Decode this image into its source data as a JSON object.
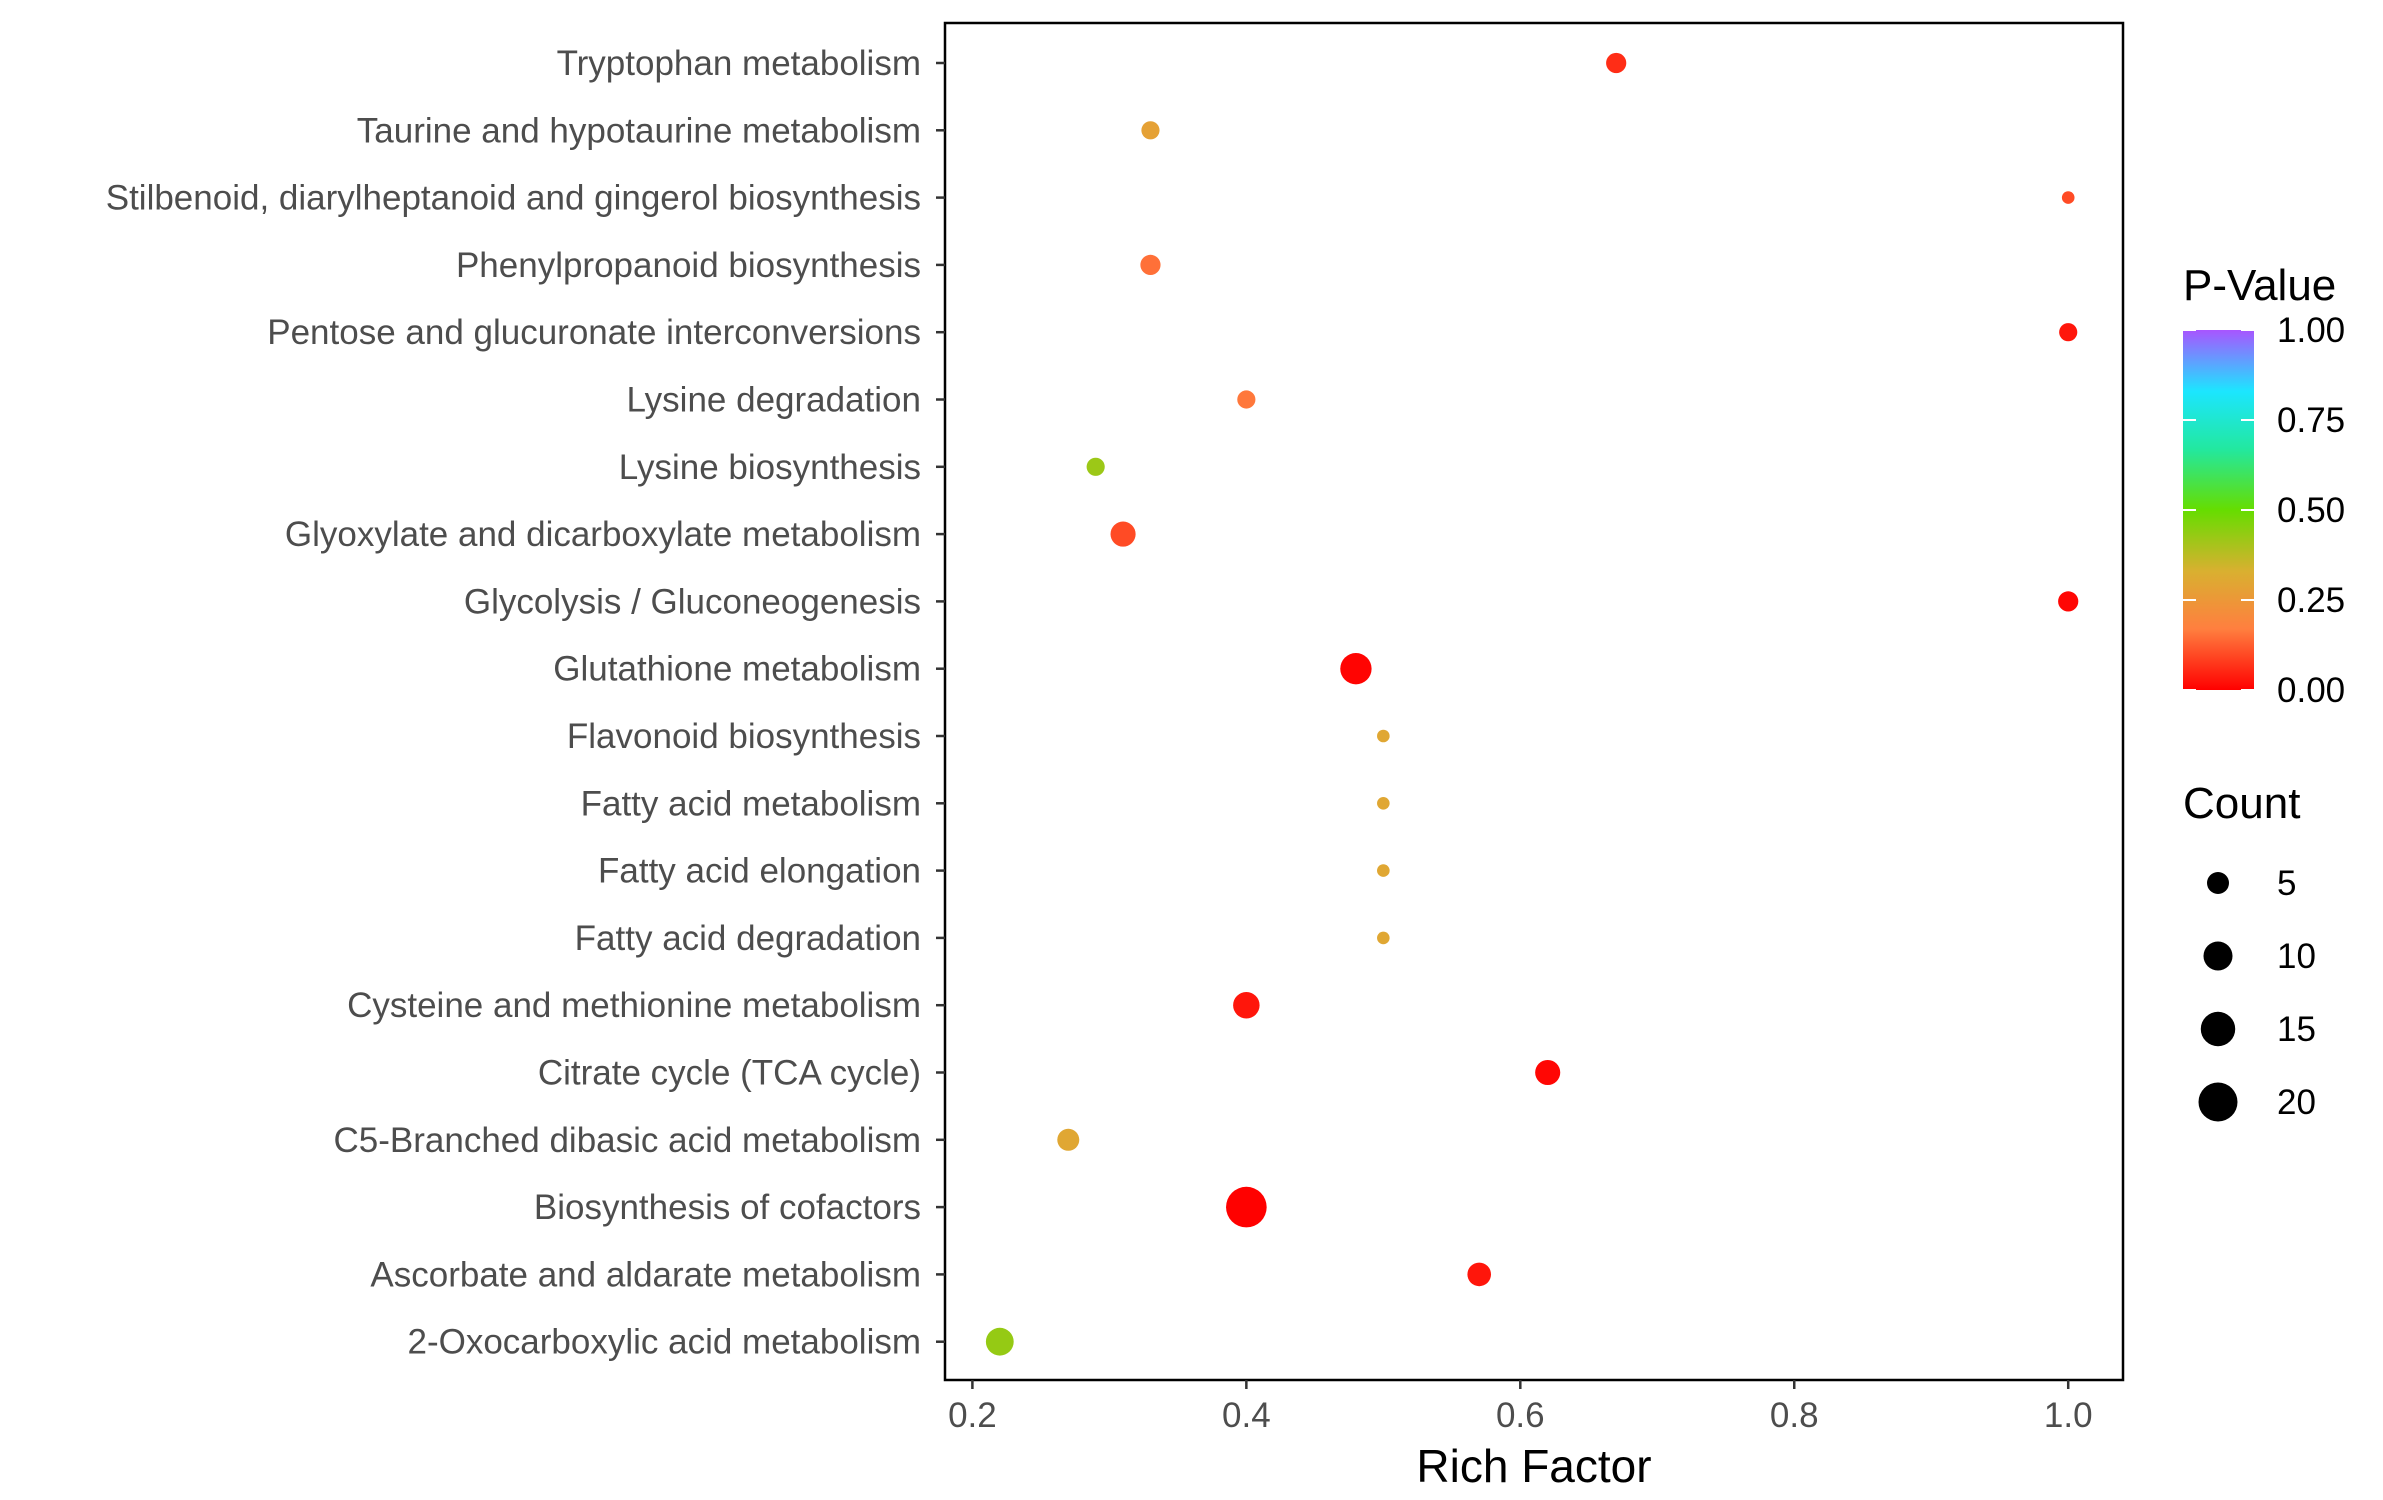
{
  "chart_data": {
    "type": "scatter",
    "xlabel": "Rich Factor",
    "ylabel": "",
    "xlim": [
      0.18,
      1.04
    ],
    "x_ticks": [
      0.2,
      0.4,
      0.6,
      0.8,
      1.0
    ],
    "x_tick_labels": [
      "0.2",
      "0.4",
      "0.6",
      "0.8",
      "1.0"
    ],
    "grid": false,
    "categories": [
      "Tryptophan metabolism",
      "Taurine and hypotaurine metabolism",
      "Stilbenoid, diarylheptanoid and gingerol biosynthesis",
      "Phenylpropanoid biosynthesis",
      "Pentose and glucuronate interconversions",
      "Lysine degradation",
      "Lysine biosynthesis",
      "Glyoxylate and dicarboxylate metabolism",
      "Glycolysis / Gluconeogenesis",
      "Glutathione metabolism",
      "Flavonoid biosynthesis",
      "Fatty acid metabolism",
      "Fatty acid elongation",
      "Fatty acid degradation",
      "Cysteine and methionine metabolism",
      "Citrate cycle (TCA cycle)",
      "C5-Branched dibasic acid metabolism",
      "Biosynthesis of cofactors",
      "Ascorbate and aldarate metabolism",
      "2-Oxocarboxylic acid metabolism"
    ],
    "points": [
      {
        "category": "Tryptophan metabolism",
        "rich_factor": 0.67,
        "p_value": 0.06,
        "count": 4
      },
      {
        "category": "Taurine and hypotaurine metabolism",
        "rich_factor": 0.33,
        "p_value": 0.28,
        "count": 3
      },
      {
        "category": "Stilbenoid, diarylheptanoid and gingerol biosynthesis",
        "rich_factor": 1.0,
        "p_value": 0.1,
        "count": 1
      },
      {
        "category": "Phenylpropanoid biosynthesis",
        "rich_factor": 0.33,
        "p_value": 0.15,
        "count": 4
      },
      {
        "category": "Pentose and glucuronate interconversions",
        "rich_factor": 1.0,
        "p_value": 0.03,
        "count": 3
      },
      {
        "category": "Lysine degradation",
        "rich_factor": 0.4,
        "p_value": 0.16,
        "count": 3
      },
      {
        "category": "Lysine biosynthesis",
        "rich_factor": 0.29,
        "p_value": 0.42,
        "count": 3
      },
      {
        "category": "Glyoxylate and dicarboxylate metabolism",
        "rich_factor": 0.31,
        "p_value": 0.1,
        "count": 7
      },
      {
        "category": "Glycolysis / Gluconeogenesis",
        "rich_factor": 1.0,
        "p_value": 0.01,
        "count": 4
      },
      {
        "category": "Glutathione metabolism",
        "rich_factor": 0.48,
        "p_value": 0.005,
        "count": 12
      },
      {
        "category": "Flavonoid biosynthesis",
        "rich_factor": 0.5,
        "p_value": 0.3,
        "count": 1
      },
      {
        "category": "Fatty acid metabolism",
        "rich_factor": 0.5,
        "p_value": 0.3,
        "count": 1
      },
      {
        "category": "Fatty acid elongation",
        "rich_factor": 0.5,
        "p_value": 0.3,
        "count": 1
      },
      {
        "category": "Fatty acid degradation",
        "rich_factor": 0.5,
        "p_value": 0.3,
        "count": 1
      },
      {
        "category": "Cysteine and methionine metabolism",
        "rich_factor": 0.4,
        "p_value": 0.03,
        "count": 8
      },
      {
        "category": "Citrate cycle (TCA cycle)",
        "rich_factor": 0.62,
        "p_value": 0.01,
        "count": 7
      },
      {
        "category": "C5-Branched dibasic acid metabolism",
        "rich_factor": 0.27,
        "p_value": 0.3,
        "count": 5
      },
      {
        "category": "Biosynthesis of cofactors",
        "rich_factor": 0.4,
        "p_value": 0.001,
        "count": 22
      },
      {
        "category": "Ascorbate and aldarate metabolism",
        "rich_factor": 0.57,
        "p_value": 0.03,
        "count": 6
      },
      {
        "category": "2-Oxocarboxylic acid metabolism",
        "rich_factor": 0.22,
        "p_value": 0.43,
        "count": 9
      }
    ],
    "legend": {
      "placement": "right",
      "color": {
        "title": "P-Value",
        "range": [
          0,
          1
        ],
        "ticks": [
          1.0,
          0.75,
          0.5,
          0.25,
          0.0
        ],
        "tick_labels": [
          "1.00",
          "0.75",
          "0.50",
          "0.25",
          "0.00"
        ],
        "gradient_stops": [
          {
            "value": 0.0,
            "color": "#ff0000"
          },
          {
            "value": 0.17,
            "color": "#ff7f3f"
          },
          {
            "value": 0.33,
            "color": "#d9b030"
          },
          {
            "value": 0.5,
            "color": "#66dd00"
          },
          {
            "value": 0.67,
            "color": "#22e8a0"
          },
          {
            "value": 0.83,
            "color": "#1ce6ff"
          },
          {
            "value": 1.0,
            "color": "#a855ff"
          }
        ]
      },
      "size": {
        "title": "Count",
        "entries": [
          5,
          10,
          15,
          20
        ],
        "entry_labels": [
          "5",
          "10",
          "15",
          "20"
        ]
      }
    }
  }
}
